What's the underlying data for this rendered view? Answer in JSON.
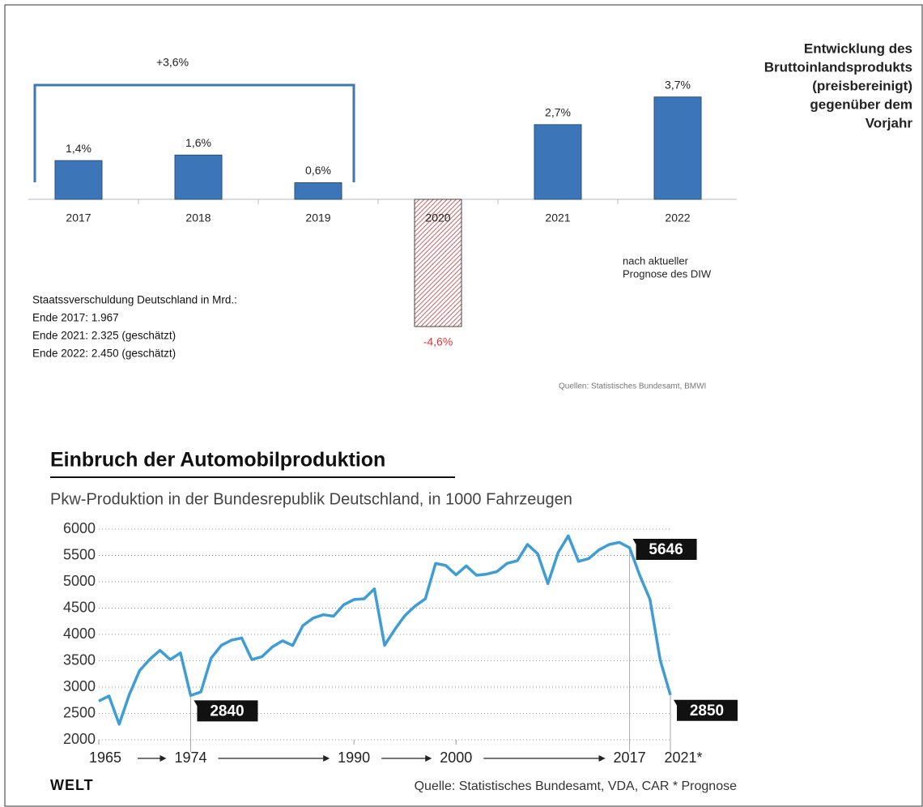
{
  "chart_data": [
    {
      "type": "bar",
      "title": [
        "Entwicklung des",
        "Bruttoinlandsprodukts",
        "(preisbereinigt)",
        "gegenüber dem",
        "Vorjahr"
      ],
      "categories": [
        "2017",
        "2018",
        "2019",
        "2020",
        "2021",
        "2022"
      ],
      "values": [
        1.4,
        1.6,
        0.6,
        -4.6,
        2.7,
        3.7
      ],
      "value_labels": [
        "1,4%",
        "1,6%",
        "0,6%",
        "-4,6%",
        "2,7%",
        "3,7%"
      ],
      "colors": [
        "#3d75b9",
        "#3d75b9",
        "#3d75b9",
        "#c0393b",
        "#3d75b9",
        "#3d75b9"
      ],
      "hatched": [
        false,
        false,
        false,
        true,
        false,
        false
      ],
      "bracket_label": "+3,6%",
      "forecast_note": [
        "nach aktueller",
        "Prognose des DIW"
      ],
      "note": [
        "Staatssverschuldung Deutschland in Mrd.:",
        "Ende 2017: 1.967",
        "Ende 2021: 2.325 (geschätzt)",
        "Ende 2022: 2.450 (geschätzt)"
      ],
      "source": "Quellen: Statistisches Bundesamt, BMWI"
    },
    {
      "type": "line",
      "title": "Einbruch der Automobilproduktion",
      "subtitle": "Pkw-Produktion in der Bundesrepublik Deutschland, in 1000 Fahrzeugen",
      "x": [
        1965,
        1966,
        1967,
        1968,
        1969,
        1970,
        1971,
        1972,
        1973,
        1974,
        1975,
        1976,
        1977,
        1978,
        1979,
        1980,
        1981,
        1982,
        1983,
        1984,
        1985,
        1986,
        1987,
        1988,
        1989,
        1990,
        1991,
        1992,
        1993,
        1994,
        1995,
        1996,
        1997,
        1998,
        1999,
        2000,
        2001,
        2002,
        2003,
        2004,
        2005,
        2006,
        2007,
        2008,
        2009,
        2010,
        2011,
        2012,
        2013,
        2014,
        2015,
        2016,
        2017,
        2018,
        2019,
        2020,
        2021
      ],
      "series": [
        {
          "name": "Pkw-Produktion",
          "color": "#3d9dd4",
          "values": [
            2734,
            2830,
            2296,
            2862,
            3312,
            3528,
            3697,
            3522,
            3650,
            2840,
            2908,
            3547,
            3790,
            3890,
            3933,
            3521,
            3578,
            3761,
            3878,
            3790,
            4167,
            4311,
            4374,
            4346,
            4564,
            4661,
            4677,
            4864,
            3794,
            4094,
            4360,
            4540,
            4678,
            5348,
            5310,
            5132,
            5301,
            5123,
            5145,
            5192,
            5350,
            5398,
            5709,
            5532,
            4964,
            5552,
            5872,
            5388,
            5440,
            5604,
            5708,
            5747,
            5646,
            5120,
            4664,
            3515,
            2850
          ],
          "value_labels": [
            null,
            null,
            null,
            null,
            null,
            null,
            null,
            null,
            null,
            "2840",
            null,
            null,
            null,
            null,
            null,
            null,
            null,
            null,
            null,
            null,
            null,
            null,
            null,
            null,
            null,
            null,
            null,
            null,
            null,
            null,
            null,
            null,
            null,
            null,
            null,
            null,
            null,
            null,
            null,
            null,
            null,
            null,
            null,
            null,
            null,
            null,
            null,
            null,
            null,
            null,
            null,
            null,
            "5646",
            null,
            null,
            null,
            "2850"
          ]
        }
      ],
      "xlim": [
        1965,
        2021
      ],
      "xticks": [
        1965,
        1974,
        1990,
        2000,
        2017,
        {
          "value": 2021,
          "label": "2021*"
        }
      ],
      "ylim": [
        2000,
        6000
      ],
      "yticks": [
        2000,
        2500,
        3000,
        3500,
        4000,
        4500,
        5000,
        5500,
        6000
      ],
      "grid": true,
      "brand": "WELT",
      "source": "Quelle: Statistisches Bundesamt, VDA, CAR * Prognose"
    }
  ]
}
